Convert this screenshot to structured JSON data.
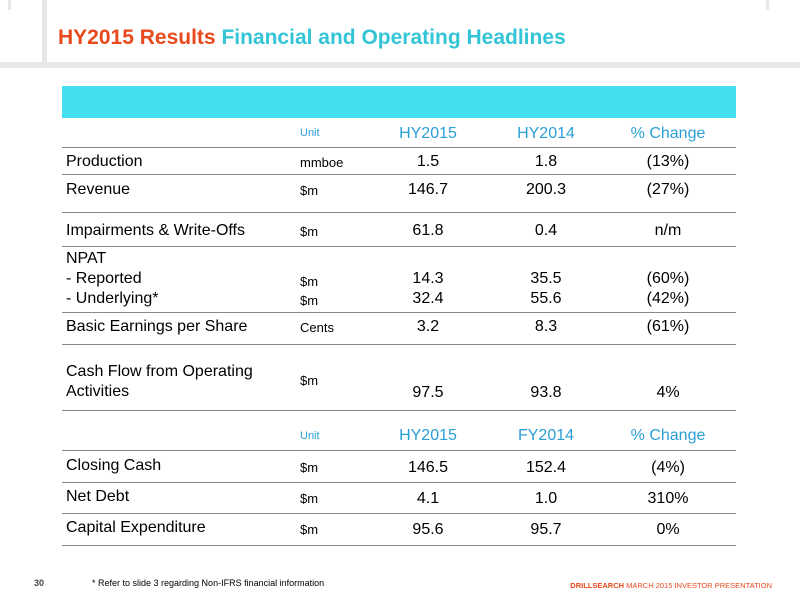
{
  "title": {
    "part1": "HY2015 Results",
    "part2": "Financial and Operating Headlines"
  },
  "table1": {
    "headers": {
      "unit": "Unit",
      "col1": "HY2015",
      "col2": "HY2014",
      "col3": "% Change"
    },
    "rows": {
      "production": {
        "label": "Production",
        "unit": "mmboe",
        "v1": "1.5",
        "v2": "1.8",
        "v3": "(13%)"
      },
      "revenue": {
        "label": "Revenue",
        "unit": "$m",
        "v1": "146.7",
        "v2": "200.3",
        "v3": "(27%)"
      },
      "impairments": {
        "label": "Impairments & Write-Offs",
        "unit": "$m",
        "v1": "61.8",
        "v2": "0.4",
        "v3": "n/m"
      },
      "npat": {
        "label": "NPAT",
        "reported": {
          "label": "-   Reported",
          "unit": "$m",
          "v1": "14.3",
          "v2": "35.5",
          "v3": "(60%)"
        },
        "underlying": {
          "label": "-   Underlying*",
          "unit": "$m",
          "v1": "32.4",
          "v2": "55.6",
          "v3": "(42%)"
        }
      },
      "eps": {
        "label": "Basic Earnings per Share",
        "unit": "Cents",
        "v1": "3.2",
        "v2": "8.3",
        "v3": "(61%)"
      },
      "cashflow": {
        "label_line1": "Cash Flow from Operating",
        "label_line2": "Activities",
        "unit": "$m",
        "v1": "97.5",
        "v2": "93.8",
        "v3": "4%"
      }
    }
  },
  "table2": {
    "headers": {
      "unit": "Unit",
      "col1": "HY2015",
      "col2": "FY2014",
      "col3": "% Change"
    },
    "rows": {
      "closing_cash": {
        "label": "Closing Cash",
        "unit": "$m",
        "v1": "146.5",
        "v2": "152.4",
        "v3": "(4%)"
      },
      "net_debt": {
        "label": "Net Debt",
        "unit": "$m",
        "v1": "4.1",
        "v2": "1.0",
        "v3": "310%"
      },
      "capex": {
        "label": "Capital Expenditure",
        "unit": "$m",
        "v1": "95.6",
        "v2": "95.7",
        "v3": "0%"
      }
    }
  },
  "footer": {
    "page_number": "30",
    "footnote": "* Refer to slide 3 regarding Non-IFRS financial information",
    "brand": "DRILLSEARCH",
    "brand_tail": "MARCH 2015 INVESTOR PRESENTATION"
  },
  "colors": {
    "title_accent": "#e8491d",
    "title_secondary": "#33c5d6",
    "header_band": "#44dfee",
    "header_text": "#2a9fd6"
  }
}
